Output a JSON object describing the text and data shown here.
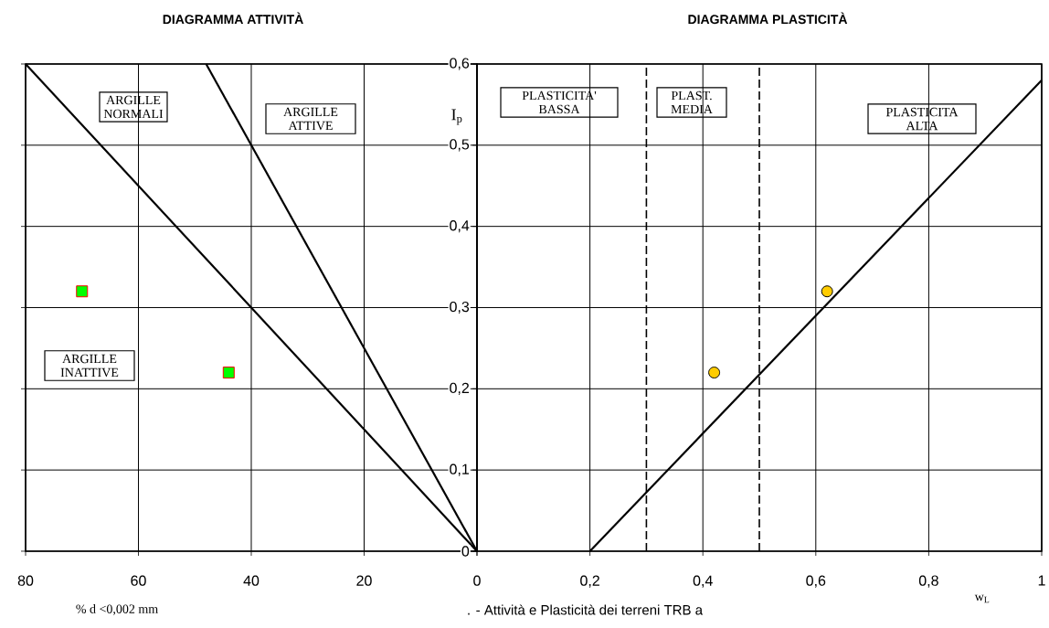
{
  "chart_data": [
    {
      "type": "line",
      "title": "DIAGRAMMA ATTIVITÀ",
      "xlabel": "% d <0,002 mm",
      "xlim": [
        80,
        0
      ],
      "ylim": [
        0,
        0.6
      ],
      "xticks": [
        80,
        60,
        40,
        20,
        {
          "value": 0,
          "label": null
        }
      ],
      "yticks": [
        {
          "value": 0,
          "label": null
        },
        {
          "value": 0.1,
          "label": null
        },
        {
          "value": 0.2,
          "label": null
        },
        {
          "value": 0.3,
          "label": null
        },
        {
          "value": 0.4,
          "label": null
        },
        {
          "value": 0.5,
          "label": null
        },
        {
          "value": 0.6,
          "label": null
        }
      ],
      "tick_labels": "x",
      "grid": true,
      "series": [
        {
          "type": "line",
          "color": "#000000",
          "marker": "none",
          "line_style": "solid",
          "x": [
            80,
            0
          ],
          "values": [
            0.6,
            0
          ]
        },
        {
          "type": "line",
          "color": "#000000",
          "marker": "none",
          "line_style": "solid",
          "x": [
            48,
            0
          ],
          "values": [
            0.6,
            0
          ]
        },
        {
          "type": "scatter",
          "color": "#00ff00",
          "marker": "square",
          "x": [
            70,
            44
          ],
          "values": [
            0.32,
            0.22
          ]
        }
      ],
      "annotations": [
        "ARGILLE NORMALI",
        "ARGILLE ATTIVE",
        "ARGILLE INATTIVE",
        ". - Attività e Plasticità dei terreni TRB a"
      ]
    },
    {
      "type": "line",
      "title": "DIAGRAMMA PLASTICITÀ",
      "xlabel": "w$_{L}$",
      "ylabel": "I$_{p}$",
      "xlim": [
        0,
        1
      ],
      "ylim": [
        0,
        0.6
      ],
      "xticks": [
        0,
        {
          "value": 0.2,
          "label": "0,2"
        },
        {
          "value": 0.4,
          "label": "0,4"
        },
        {
          "value": 0.6,
          "label": "0,6"
        },
        {
          "value": 0.8,
          "label": "0,8"
        },
        1
      ],
      "yticks": [
        0,
        {
          "value": 0.1,
          "label": "0,1"
        },
        {
          "value": 0.2,
          "label": "0,2"
        },
        {
          "value": 0.3,
          "label": "0,3"
        },
        {
          "value": 0.4,
          "label": "0,4"
        },
        {
          "value": 0.5,
          "label": "0,5"
        },
        {
          "value": 0.6,
          "label": "0,6"
        }
      ],
      "grid": true,
      "ref_lines": [
        {
          "axis": "x",
          "value": 0.3,
          "line_style": "dashed",
          "color": "#000000"
        },
        {
          "axis": "x",
          "value": 0.5,
          "line_style": "dashed",
          "color": "#000000"
        }
      ],
      "series": [
        {
          "type": "line",
          "color": "#000000",
          "marker": "none",
          "line_style": "solid",
          "x": [
            0.2,
            1
          ],
          "values": [
            0,
            0.58
          ]
        },
        {
          "type": "scatter",
          "color": "#ffcc00",
          "marker": "circle",
          "x": [
            0.62,
            0.42
          ],
          "values": [
            0.32,
            0.22
          ]
        }
      ],
      "annotations": [
        "PLASTICITA' BASSA",
        "PLAST. MEDIA",
        "PLASTICITA ALTA"
      ]
    }
  ]
}
